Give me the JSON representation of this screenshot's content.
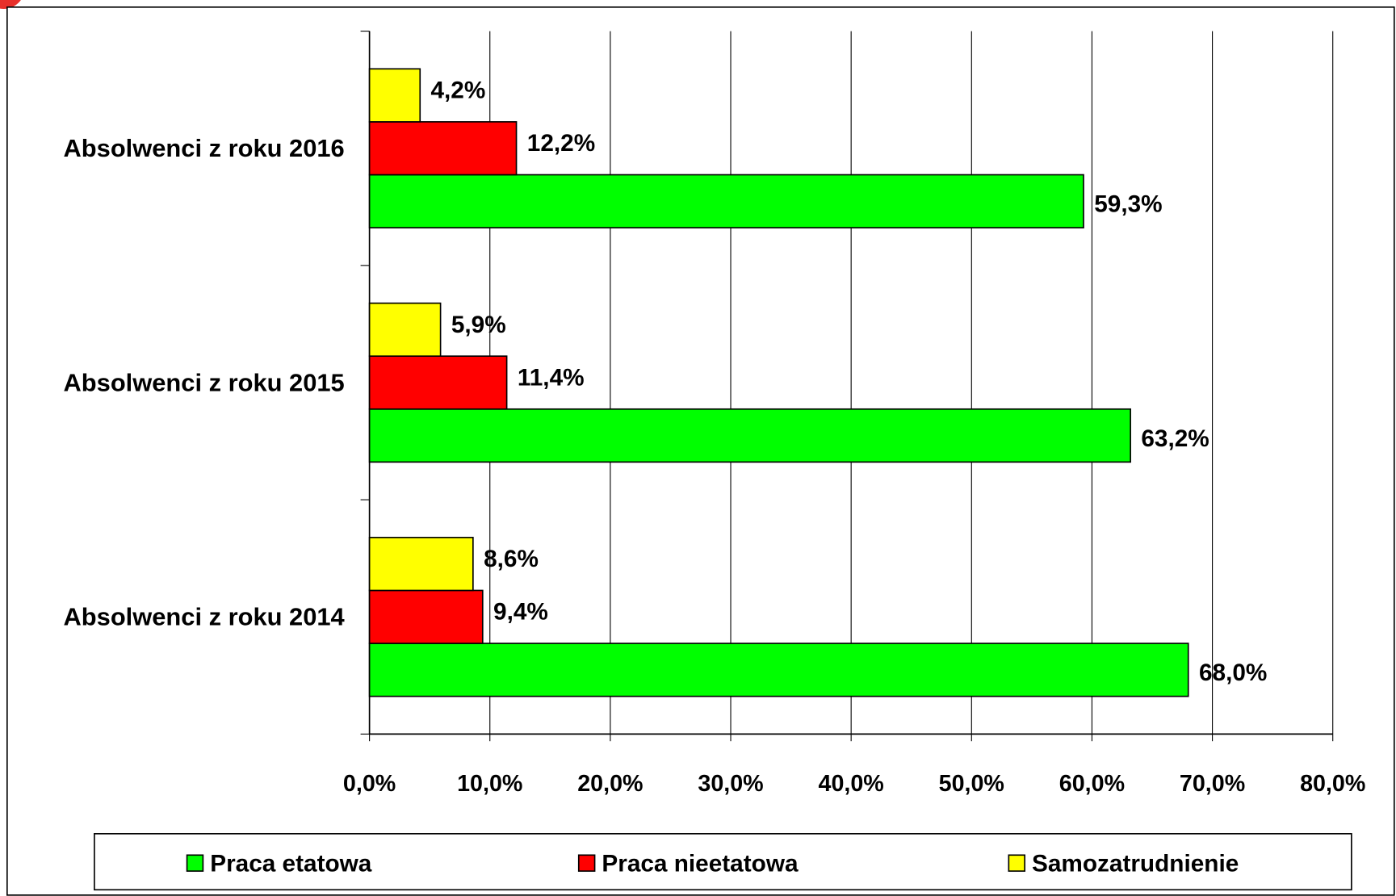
{
  "chart_data": {
    "type": "bar",
    "orientation": "horizontal",
    "categories": [
      "Absolwenci z roku 2016",
      "Absolwenci z roku 2015",
      "Absolwenci z roku 2014"
    ],
    "series": [
      {
        "name": "Praca etatowa",
        "color": "#00ff00",
        "values": [
          59.3,
          63.2,
          68.0
        ],
        "value_labels": [
          "59,3%",
          "63,2%",
          "68,0%"
        ]
      },
      {
        "name": "Praca nieetatowa",
        "color": "#ff0000",
        "values": [
          12.2,
          11.4,
          9.4
        ],
        "value_labels": [
          "12,2%",
          "11,4%",
          "9,4%"
        ]
      },
      {
        "name": "Samozatrudnienie",
        "color": "#ffff00",
        "values": [
          4.2,
          5.9,
          8.6
        ],
        "value_labels": [
          "4,2%",
          "5,9%",
          "8,6%"
        ]
      }
    ],
    "xlim": [
      0,
      80
    ],
    "xticks": [
      {
        "value": 0,
        "label": "0,0%"
      },
      {
        "value": 10,
        "label": "10,0%"
      },
      {
        "value": 20,
        "label": "20,0%"
      },
      {
        "value": 30,
        "label": "30,0%"
      },
      {
        "value": 40,
        "label": "40,0%"
      },
      {
        "value": 50,
        "label": "50,0%"
      },
      {
        "value": 60,
        "label": "60,0%"
      },
      {
        "value": 70,
        "label": "70,0%"
      },
      {
        "value": 80,
        "label": "80,0%"
      }
    ],
    "grid": true,
    "legend": "bottom"
  }
}
